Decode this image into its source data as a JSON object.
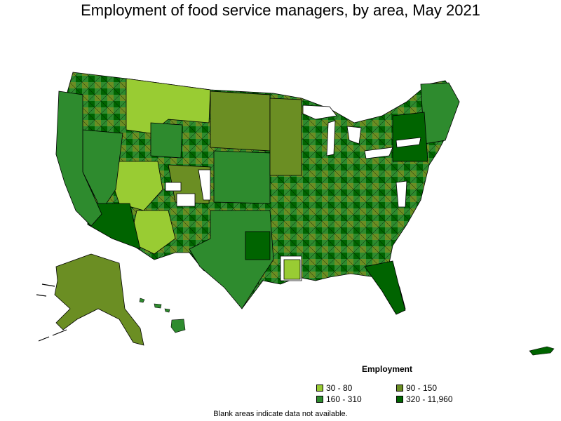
{
  "title": "Employment of food service managers, by area, May 2021",
  "legend": {
    "title": "Employment",
    "items": [
      {
        "label": "30 - 80",
        "color": "#99cc33"
      },
      {
        "label": "90 - 150",
        "color": "#6b8e23"
      },
      {
        "label": "160 - 310",
        "color": "#2e8b2e"
      },
      {
        "label": "320 - 11,960",
        "color": "#006400"
      }
    ]
  },
  "note": "Blank areas indicate data not available.",
  "colors": {
    "border": "#000000",
    "no_data": "#ffffff"
  }
}
